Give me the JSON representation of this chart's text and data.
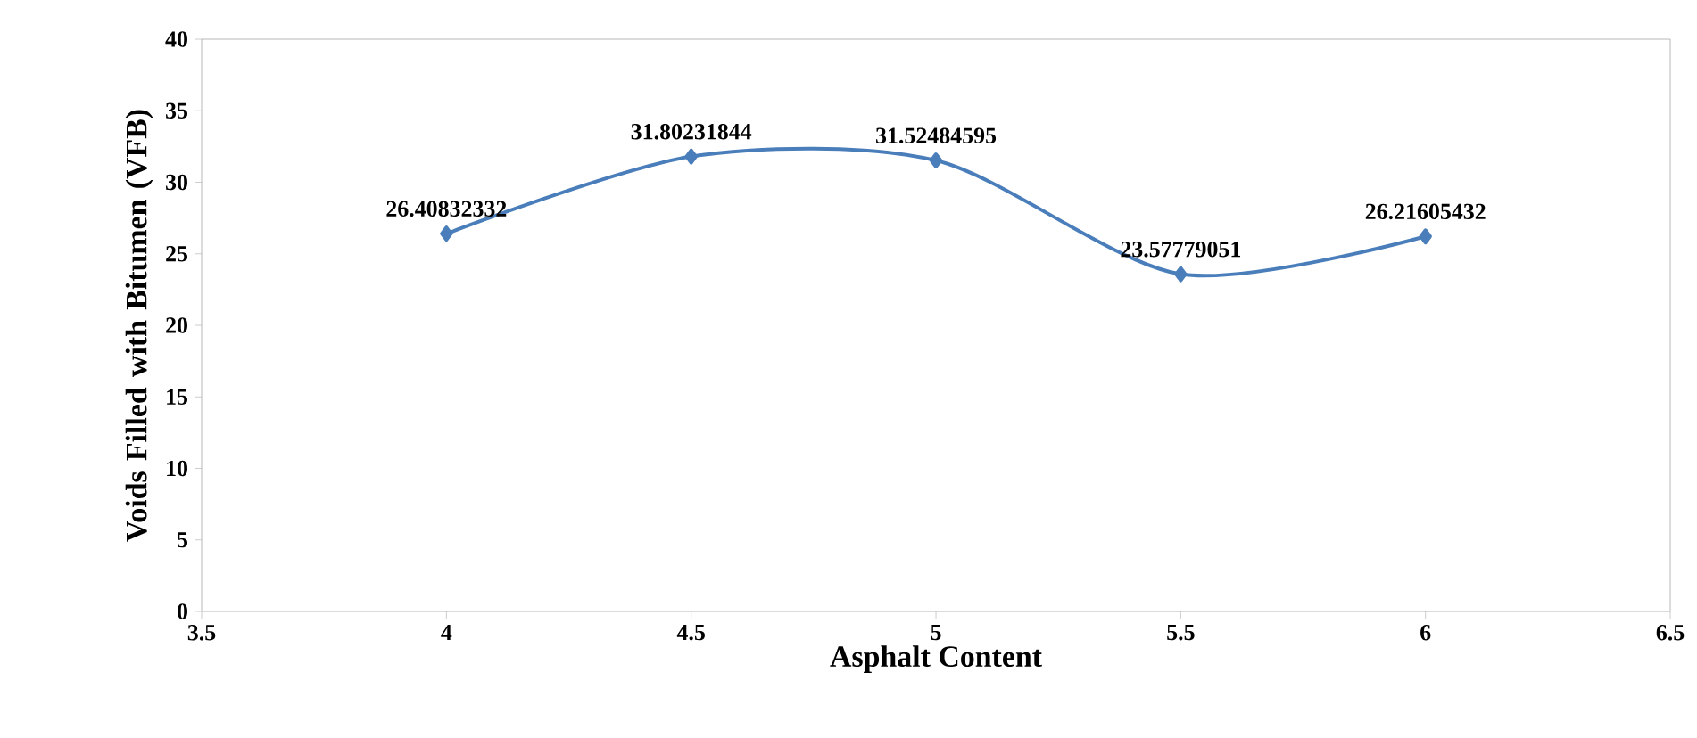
{
  "chart_data": {
    "type": "line",
    "xlabel": "Asphalt Content",
    "ylabel": "Voids Filled with Bitumen (VFB)",
    "x": [
      4,
      4.5,
      5,
      5.5,
      6
    ],
    "values": [
      26.40832332,
      31.80231844,
      31.52484595,
      23.57779051,
      26.21605432
    ],
    "color": "#4a7ebb",
    "marker": "diamond",
    "line_style": "solid",
    "data_labels": true,
    "xlim": [
      3.5,
      6.5
    ],
    "xticks": [
      3.5,
      4,
      4.5,
      5,
      5.5,
      6,
      6.5
    ],
    "ylim": [
      0,
      40
    ],
    "yticks": [
      0,
      5,
      10,
      15,
      20,
      25,
      30,
      35,
      40
    ]
  }
}
